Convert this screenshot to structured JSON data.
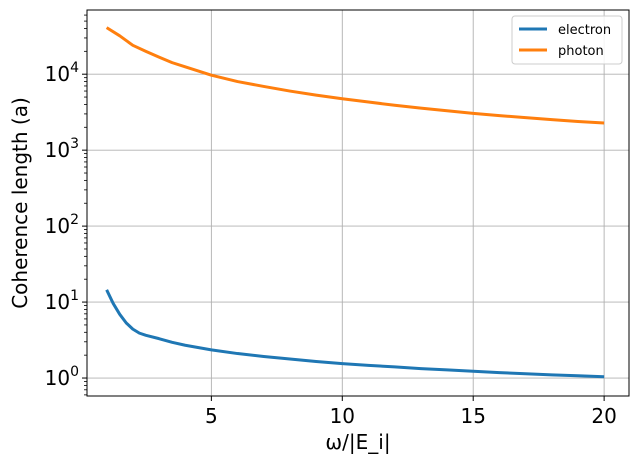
{
  "chart_data": {
    "type": "line",
    "title": "",
    "xlabel": "ω/|E_i|",
    "ylabel": "Coherence length (a)",
    "yscale": "log",
    "xlim": [
      0.25,
      20.95
    ],
    "ylim": [
      0.58,
      70000
    ],
    "grid": true,
    "legend": "top-right",
    "xticks": [
      {
        "value": 5,
        "label": "5"
      },
      {
        "value": 10,
        "label": "10"
      },
      {
        "value": 15,
        "label": "15"
      },
      {
        "value": 20,
        "label": "20"
      }
    ],
    "yticks": [
      {
        "value": 1,
        "base": "10",
        "exp": "0"
      },
      {
        "value": 10,
        "base": "10",
        "exp": "1"
      },
      {
        "value": 100,
        "base": "10",
        "exp": "2"
      },
      {
        "value": 1000,
        "base": "10",
        "exp": "3"
      },
      {
        "value": 10000,
        "base": "10",
        "exp": "4"
      }
    ],
    "series": [
      {
        "name": "electron",
        "color": "#1f77b4",
        "points": [
          [
            1.0,
            14.5
          ],
          [
            1.25,
            9.6
          ],
          [
            1.5,
            6.9
          ],
          [
            1.75,
            5.3
          ],
          [
            2.0,
            4.4
          ],
          [
            2.25,
            3.9
          ],
          [
            2.5,
            3.65
          ],
          [
            3.0,
            3.3
          ],
          [
            3.5,
            2.95
          ],
          [
            4.0,
            2.7
          ],
          [
            5.0,
            2.35
          ],
          [
            6.0,
            2.1
          ],
          [
            7.0,
            1.92
          ],
          [
            8.0,
            1.78
          ],
          [
            9.0,
            1.65
          ],
          [
            10.0,
            1.55
          ],
          [
            11.0,
            1.47
          ],
          [
            12.0,
            1.4
          ],
          [
            13.0,
            1.33
          ],
          [
            14.0,
            1.28
          ],
          [
            15.0,
            1.23
          ],
          [
            16.0,
            1.18
          ],
          [
            17.0,
            1.14
          ],
          [
            18.0,
            1.1
          ],
          [
            19.0,
            1.07
          ],
          [
            20.0,
            1.04
          ]
        ]
      },
      {
        "name": "photon",
        "color": "#ff7f0e",
        "points": [
          [
            1.0,
            41000
          ],
          [
            1.5,
            32000
          ],
          [
            2.0,
            24000
          ],
          [
            2.5,
            20000
          ],
          [
            3.0,
            16800
          ],
          [
            3.5,
            14200
          ],
          [
            4.0,
            12500
          ],
          [
            5.0,
            9700
          ],
          [
            6.0,
            8000
          ],
          [
            7.0,
            6900
          ],
          [
            8.0,
            6000
          ],
          [
            9.0,
            5300
          ],
          [
            10.0,
            4750
          ],
          [
            11.0,
            4300
          ],
          [
            12.0,
            3900
          ],
          [
            13.0,
            3580
          ],
          [
            14.0,
            3300
          ],
          [
            15.0,
            3050
          ],
          [
            16.0,
            2850
          ],
          [
            17.0,
            2680
          ],
          [
            18.0,
            2520
          ],
          [
            19.0,
            2380
          ],
          [
            20.0,
            2280
          ]
        ]
      }
    ]
  },
  "colors": {
    "grid": "#b0b0b0",
    "axes": "#000000",
    "legend_border": "#cccccc"
  }
}
